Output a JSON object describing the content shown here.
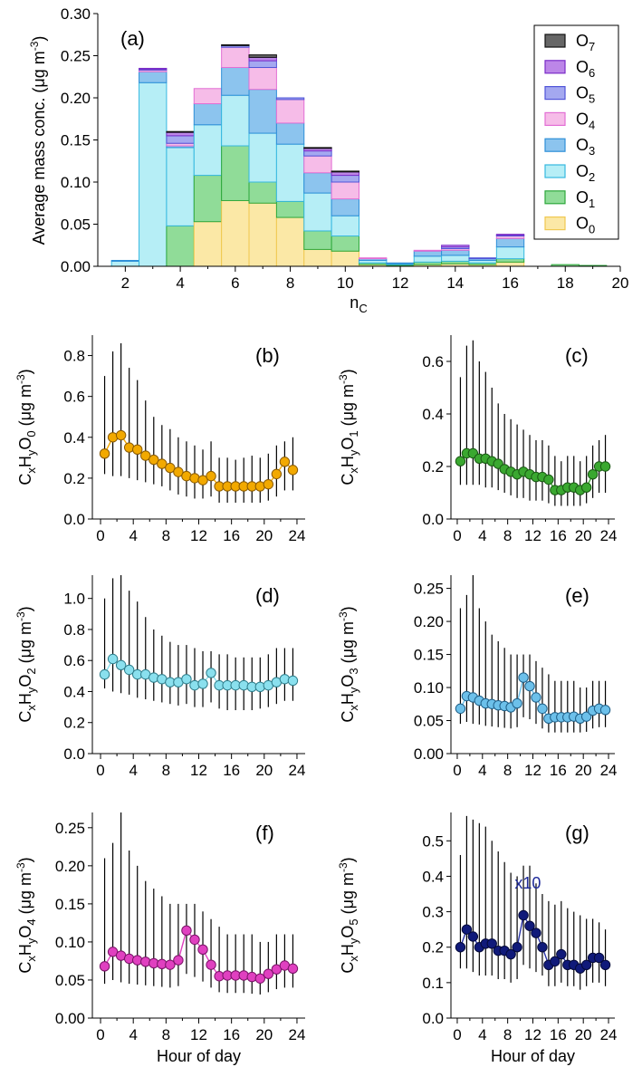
{
  "figure": {
    "panel_a": {
      "type": "bar",
      "stacked": true,
      "panel_label": "(a)",
      "ylabel_main": "Average mass conc. (μg m",
      "ylabel_sup": "-3",
      "ylabel_close": ")",
      "xlabel_main": "n",
      "xlabel_sub": "C",
      "x_range": [
        1,
        20
      ],
      "ylim": [
        0,
        0.3
      ],
      "x_ticks": [
        "2",
        "4",
        "6",
        "8",
        "10",
        "12",
        "14",
        "16",
        "18",
        "20"
      ],
      "y_ticks": [
        "0.00",
        "0.05",
        "0.10",
        "0.15",
        "0.20",
        "0.25",
        "0.30"
      ],
      "categories": [
        2,
        3,
        4,
        5,
        6,
        7,
        8,
        9,
        10,
        11,
        12,
        13,
        14,
        15,
        16,
        17,
        18,
        19
      ],
      "series": [
        {
          "name": "O0",
          "base": "O",
          "sub": "0",
          "fill": "#fbe8a6",
          "edge": "#f0c850",
          "values": [
            0.0,
            0.0,
            0.0,
            0.053,
            0.078,
            0.075,
            0.058,
            0.02,
            0.018,
            0.002,
            0.001,
            0.002,
            0.003,
            0.002,
            0.005,
            0.0,
            0.0,
            0.0
          ]
        },
        {
          "name": "O1",
          "base": "O",
          "sub": "1",
          "fill": "#90dc98",
          "edge": "#2ea83c",
          "values": [
            0.0,
            0.0,
            0.048,
            0.055,
            0.065,
            0.025,
            0.019,
            0.022,
            0.018,
            0.002,
            0.001,
            0.003,
            0.003,
            0.002,
            0.004,
            0.0,
            0.002,
            0.001
          ]
        },
        {
          "name": "O2",
          "base": "O",
          "sub": "2",
          "fill": "#b6eef6",
          "edge": "#36b8e0",
          "values": [
            0.006,
            0.218,
            0.093,
            0.06,
            0.06,
            0.058,
            0.068,
            0.045,
            0.024,
            0.003,
            0.001,
            0.007,
            0.007,
            0.003,
            0.014,
            0.0,
            0.0,
            0.0
          ]
        },
        {
          "name": "O3",
          "base": "O",
          "sub": "3",
          "fill": "#8cc4ee",
          "edge": "#2e8fd8",
          "values": [
            0.001,
            0.013,
            0.002,
            0.025,
            0.033,
            0.052,
            0.025,
            0.024,
            0.02,
            0.002,
            0.001,
            0.006,
            0.006,
            0.002,
            0.01,
            0.0,
            0.0,
            0.0
          ]
        },
        {
          "name": "O4",
          "base": "O",
          "sub": "4",
          "fill": "#f6bce8",
          "edge": "#e26ed4",
          "values": [
            0.0,
            0.002,
            0.003,
            0.018,
            0.024,
            0.026,
            0.028,
            0.02,
            0.02,
            0.001,
            0.0,
            0.001,
            0.002,
            0.0,
            0.003,
            0.0,
            0.0,
            0.0
          ]
        },
        {
          "name": "O5",
          "base": "O",
          "sub": "5",
          "fill": "#a4a8f0",
          "edge": "#5054d8",
          "values": [
            0.0,
            0.001,
            0.009,
            0.0,
            0.002,
            0.008,
            0.002,
            0.006,
            0.008,
            0.0,
            0.0,
            0.0,
            0.002,
            0.001,
            0.001,
            0.0,
            0.0,
            0.0
          ]
        },
        {
          "name": "O6",
          "base": "O",
          "sub": "6",
          "fill": "#bc86e8",
          "edge": "#7a2cc8",
          "values": [
            0.0,
            0.001,
            0.004,
            0.0,
            0.0,
            0.004,
            0.0,
            0.003,
            0.004,
            0.0,
            0.0,
            0.0,
            0.002,
            0.0,
            0.001,
            0.0,
            0.0,
            0.0
          ]
        },
        {
          "name": "O7",
          "base": "O",
          "sub": "7",
          "fill": "#666666",
          "edge": "#111111",
          "values": [
            0.0,
            0.0,
            0.001,
            0.0,
            0.001,
            0.003,
            0.0,
            0.001,
            0.001,
            0.0,
            0.0,
            0.0,
            0.0,
            0.0,
            0.0,
            0.0,
            0.0,
            0.0
          ]
        }
      ]
    },
    "diurnal": {
      "xlabel": "Hour of day",
      "x_ticks": [
        "0",
        "4",
        "8",
        "12",
        "16",
        "20",
        "24"
      ],
      "x_range": [
        -1,
        25
      ],
      "hours": [
        0.5,
        1.5,
        2.5,
        3.5,
        4.5,
        5.5,
        6.5,
        7.5,
        8.5,
        9.5,
        10.5,
        11.5,
        12.5,
        13.5,
        14.5,
        15.5,
        16.5,
        17.5,
        18.5,
        19.5,
        20.5,
        21.5,
        22.5,
        23.5
      ],
      "panels": [
        {
          "label": "(b)",
          "sub_o": "0",
          "fill": "#f2a900",
          "edge": "#8a5a00",
          "line": "#f2a900",
          "ylim": [
            0,
            0.9
          ],
          "y_ticks": [
            0,
            0.2,
            0.4,
            0.6,
            0.8
          ],
          "y_tick_labels": [
            "0.0",
            "0.2",
            "0.4",
            "0.6",
            "0.8"
          ],
          "values": [
            0.32,
            0.4,
            0.41,
            0.35,
            0.34,
            0.31,
            0.29,
            0.27,
            0.25,
            0.23,
            0.21,
            0.2,
            0.19,
            0.21,
            0.16,
            0.16,
            0.16,
            0.16,
            0.16,
            0.16,
            0.17,
            0.22,
            0.28,
            0.24
          ],
          "upper": [
            0.7,
            0.82,
            0.86,
            0.74,
            0.68,
            0.58,
            0.5,
            0.46,
            0.44,
            0.4,
            0.38,
            0.36,
            0.34,
            0.38,
            0.3,
            0.3,
            0.29,
            0.3,
            0.31,
            0.3,
            0.32,
            0.36,
            0.38,
            0.4
          ],
          "lower": [
            0.22,
            0.21,
            0.21,
            0.2,
            0.19,
            0.18,
            0.17,
            0.16,
            0.14,
            0.12,
            0.11,
            0.1,
            0.1,
            0.11,
            0.08,
            0.08,
            0.08,
            0.08,
            0.08,
            0.08,
            0.09,
            0.11,
            0.14,
            0.14
          ]
        },
        {
          "label": "(c)",
          "sub_o": "1",
          "fill": "#3aa830",
          "edge": "#1a5a14",
          "line": "#3aa830",
          "ylim": [
            0,
            0.7
          ],
          "y_ticks": [
            0,
            0.2,
            0.4,
            0.6
          ],
          "y_tick_labels": [
            "0.0",
            "0.2",
            "0.4",
            "0.6"
          ],
          "values": [
            0.22,
            0.25,
            0.25,
            0.23,
            0.23,
            0.22,
            0.21,
            0.19,
            0.18,
            0.17,
            0.18,
            0.17,
            0.16,
            0.16,
            0.15,
            0.11,
            0.11,
            0.12,
            0.12,
            0.11,
            0.12,
            0.17,
            0.2,
            0.2
          ],
          "upper": [
            0.54,
            0.66,
            0.68,
            0.6,
            0.56,
            0.5,
            0.44,
            0.4,
            0.38,
            0.36,
            0.34,
            0.32,
            0.3,
            0.3,
            0.28,
            0.24,
            0.22,
            0.24,
            0.24,
            0.22,
            0.24,
            0.28,
            0.3,
            0.32
          ],
          "lower": [
            0.13,
            0.13,
            0.13,
            0.13,
            0.12,
            0.12,
            0.11,
            0.1,
            0.09,
            0.08,
            0.08,
            0.07,
            0.07,
            0.07,
            0.06,
            0.05,
            0.05,
            0.05,
            0.05,
            0.05,
            0.06,
            0.08,
            0.1,
            0.1
          ]
        },
        {
          "label": "(d)",
          "sub_o": "2",
          "fill": "#8ae0ee",
          "edge": "#2f7e8c",
          "line": "#8ae0ee",
          "ylim": [
            0,
            1.15
          ],
          "y_ticks": [
            0,
            0.2,
            0.4,
            0.6,
            0.8,
            1.0
          ],
          "y_tick_labels": [
            "0.0",
            "0.2",
            "0.4",
            "0.6",
            "0.8",
            "1.0"
          ],
          "values": [
            0.51,
            0.61,
            0.57,
            0.54,
            0.51,
            0.51,
            0.49,
            0.48,
            0.46,
            0.46,
            0.48,
            0.44,
            0.45,
            0.52,
            0.44,
            0.44,
            0.44,
            0.44,
            0.43,
            0.43,
            0.44,
            0.46,
            0.48,
            0.47
          ],
          "upper": [
            1.0,
            1.13,
            1.15,
            1.05,
            0.98,
            0.88,
            0.8,
            0.76,
            0.72,
            0.7,
            0.7,
            0.68,
            0.66,
            0.66,
            0.64,
            0.64,
            0.62,
            0.62,
            0.62,
            0.62,
            0.64,
            0.68,
            0.68,
            0.68
          ],
          "lower": [
            0.42,
            0.4,
            0.39,
            0.38,
            0.36,
            0.35,
            0.34,
            0.33,
            0.32,
            0.31,
            0.32,
            0.3,
            0.3,
            0.33,
            0.29,
            0.28,
            0.28,
            0.28,
            0.28,
            0.29,
            0.3,
            0.32,
            0.34,
            0.34
          ]
        },
        {
          "label": "(e)",
          "sub_o": "3",
          "fill": "#6cc0ea",
          "edge": "#1f5f88",
          "line": "#6cc0ea",
          "ylim": [
            0,
            0.27
          ],
          "y_ticks": [
            0,
            0.05,
            0.1,
            0.15,
            0.2,
            0.25
          ],
          "y_tick_labels": [
            "0.00",
            "0.05",
            "0.10",
            "0.15",
            "0.20",
            "0.25"
          ],
          "values": [
            0.068,
            0.087,
            0.085,
            0.08,
            0.076,
            0.075,
            0.073,
            0.072,
            0.07,
            0.076,
            0.115,
            0.102,
            0.085,
            0.068,
            0.053,
            0.055,
            0.055,
            0.055,
            0.056,
            0.053,
            0.056,
            0.065,
            0.068,
            0.066
          ],
          "upper": [
            0.22,
            0.24,
            0.27,
            0.22,
            0.2,
            0.18,
            0.17,
            0.16,
            0.15,
            0.15,
            0.15,
            0.15,
            0.14,
            0.13,
            0.12,
            0.11,
            0.11,
            0.11,
            0.11,
            0.1,
            0.1,
            0.11,
            0.11,
            0.11
          ],
          "lower": [
            0.045,
            0.048,
            0.045,
            0.044,
            0.042,
            0.041,
            0.04,
            0.039,
            0.038,
            0.04,
            0.055,
            0.052,
            0.045,
            0.038,
            0.032,
            0.032,
            0.032,
            0.032,
            0.032,
            0.032,
            0.033,
            0.038,
            0.04,
            0.04
          ]
        },
        {
          "label": "(f)",
          "sub_o": "4",
          "fill": "#e040c0",
          "edge": "#7a1468",
          "line": "#e040c0",
          "ylim": [
            0,
            0.27
          ],
          "y_ticks": [
            0,
            0.05,
            0.1,
            0.15,
            0.2,
            0.25
          ],
          "y_tick_labels": [
            "0.00",
            "0.05",
            "0.10",
            "0.15",
            "0.20",
            "0.25"
          ],
          "values": [
            0.068,
            0.087,
            0.082,
            0.078,
            0.076,
            0.074,
            0.072,
            0.071,
            0.07,
            0.076,
            0.115,
            0.103,
            0.09,
            0.07,
            0.055,
            0.056,
            0.056,
            0.056,
            0.054,
            0.052,
            0.058,
            0.064,
            0.069,
            0.065
          ],
          "upper": [
            0.21,
            0.23,
            0.27,
            0.22,
            0.2,
            0.18,
            0.17,
            0.16,
            0.15,
            0.15,
            0.15,
            0.15,
            0.14,
            0.13,
            0.12,
            0.11,
            0.11,
            0.11,
            0.11,
            0.1,
            0.1,
            0.11,
            0.11,
            0.11
          ],
          "lower": [
            0.045,
            0.05,
            0.047,
            0.045,
            0.044,
            0.043,
            0.042,
            0.041,
            0.04,
            0.042,
            0.058,
            0.054,
            0.048,
            0.04,
            0.034,
            0.033,
            0.033,
            0.033,
            0.032,
            0.031,
            0.034,
            0.038,
            0.04,
            0.04
          ]
        },
        {
          "label": "(g)",
          "sub_o": "5",
          "fill": "#101a7a",
          "edge": "#050a3a",
          "line": "#2a34a8",
          "annotation": "x10",
          "ylim": [
            0,
            0.58
          ],
          "y_ticks": [
            0,
            0.1,
            0.2,
            0.3,
            0.4,
            0.5
          ],
          "y_tick_labels": [
            "0.0",
            "0.1",
            "0.2",
            "0.3",
            "0.4",
            "0.5"
          ],
          "values": [
            0.2,
            0.25,
            0.23,
            0.2,
            0.21,
            0.21,
            0.19,
            0.19,
            0.18,
            0.2,
            0.29,
            0.26,
            0.24,
            0.2,
            0.15,
            0.16,
            0.18,
            0.15,
            0.15,
            0.14,
            0.15,
            0.17,
            0.17,
            0.15
          ],
          "upper": [
            0.46,
            0.57,
            0.56,
            0.55,
            0.54,
            0.5,
            0.47,
            0.44,
            0.41,
            0.4,
            0.43,
            0.43,
            0.38,
            0.35,
            0.33,
            0.32,
            0.33,
            0.31,
            0.3,
            0.29,
            0.28,
            0.28,
            0.27,
            0.25
          ],
          "lower": [
            0.14,
            0.14,
            0.13,
            0.12,
            0.12,
            0.12,
            0.11,
            0.11,
            0.1,
            0.11,
            0.15,
            0.14,
            0.13,
            0.12,
            0.09,
            0.09,
            0.1,
            0.09,
            0.09,
            0.08,
            0.09,
            0.1,
            0.1,
            0.09
          ]
        }
      ],
      "ylabel": {
        "c": "C",
        "x": "x",
        "h": "H",
        "y": "y",
        "o": "O",
        "unit_open": " (μg m",
        "unit_sup": "-3",
        "unit_close": ")"
      }
    }
  }
}
